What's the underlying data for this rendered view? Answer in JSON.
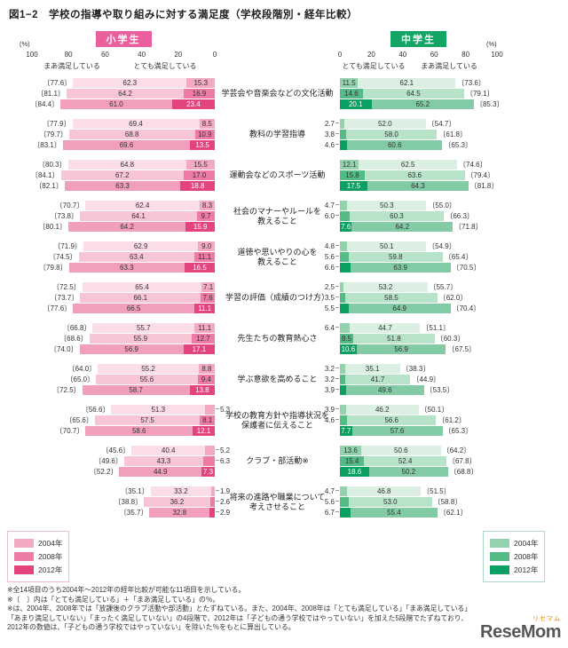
{
  "title": "図1−2　学校の指導や取り組みに対する満足度（学校段階別・経年比較）",
  "left_panel": {
    "header": "小学生",
    "header_color": "#ea5f9e",
    "percent_label": "(%)",
    "axis_ticks": [
      "100",
      "80",
      "60",
      "40",
      "20",
      "0"
    ],
    "sub_labels": [
      "まあ満足している",
      "とても満足している"
    ]
  },
  "right_panel": {
    "header": "中学生",
    "header_color": "#12a565",
    "percent_label": "(%)",
    "axis_ticks": [
      "0",
      "20",
      "40",
      "60",
      "80",
      "100"
    ],
    "sub_labels": [
      "とても満足している",
      "まあ満足している"
    ]
  },
  "colors": {
    "elementary": {
      "very": [
        "#f3a9c2",
        "#ee7ba5",
        "#e3447e"
      ],
      "somewhat": [
        "#fbdde7",
        "#f8c5d5",
        "#f19fbd"
      ]
    },
    "junior_high": {
      "very": [
        "#94d2ae",
        "#55bb86",
        "#0aa061"
      ],
      "somewhat": [
        "#dbf0e3",
        "#b7e3c9",
        "#82cba5"
      ]
    }
  },
  "legend_left": {
    "items": [
      {
        "label": "2004年",
        "color": "#f3a9c2"
      },
      {
        "label": "2008年",
        "color": "#ee7ba5"
      },
      {
        "label": "2012年",
        "color": "#e3447e"
      }
    ]
  },
  "legend_right": {
    "items": [
      {
        "label": "2004年",
        "color": "#94d2ae"
      },
      {
        "label": "2008年",
        "color": "#55bb86"
      },
      {
        "label": "2012年",
        "color": "#0aa061"
      }
    ]
  },
  "footnotes": [
    "※全14項目のうち2004年～2012年の経年比較が可能な11項目を示している。",
    "※〔　〕内は「とても満足している」＋「まあ満足している」の％。",
    "※は、2004年、2008年では「放課後のクラブ活動や部活動」とたずねている。また、2004年、2008年は「とても満足している」「まあ満足している」",
    "「あまり満足していない」「まったく満足していない」の4段階で、2012年は「子どもの通う学校ではやっていない」を加えた5段階でたずねており、",
    "2012年の数値は、「子どもの通う学校ではやっていない」を除いた％をもとに算出している。"
  ],
  "logo": {
    "kana": "リセマム",
    "text": "ReseMom"
  },
  "chart_data": {
    "type": "bar",
    "orientation": "horizontal-diverging-stacked",
    "xlim": [
      0,
      100
    ],
    "years": [
      "2004年",
      "2008年",
      "2012年"
    ],
    "segments": [
      "とても満足している",
      "まあ満足している"
    ],
    "categories": [
      "学芸会や音楽会などの文化活動",
      "教科の学習指導",
      "運動会などのスポーツ活動",
      "社会のマナーやルールを\n教えること",
      "道徳や思いやりの心を\n教えること",
      "学習の評価（成績のつけ方）",
      "先生たちの教育熱心さ",
      "学ぶ意欲を高めること",
      "学校の教育方針や指導状況を\n保護者に伝えること",
      "クラブ・部活動※",
      "将来の進路や職業について\n考えさせること"
    ],
    "elementary": [
      {
        "somewhat": [
          62.3,
          64.2,
          61.0
        ],
        "very": [
          15.3,
          16.9,
          23.4
        ],
        "total": [
          77.6,
          81.1,
          84.4
        ]
      },
      {
        "somewhat": [
          69.4,
          68.8,
          69.6
        ],
        "very": [
          8.5,
          10.9,
          13.5
        ],
        "total": [
          77.9,
          79.7,
          83.1
        ]
      },
      {
        "somewhat": [
          64.8,
          67.2,
          63.3
        ],
        "very": [
          15.5,
          17.0,
          18.8
        ],
        "total": [
          80.3,
          84.1,
          82.1
        ]
      },
      {
        "somewhat": [
          62.4,
          64.1,
          64.2
        ],
        "very": [
          8.3,
          9.7,
          15.9
        ],
        "total": [
          70.7,
          73.8,
          80.1
        ]
      },
      {
        "somewhat": [
          62.9,
          63.4,
          63.3
        ],
        "very": [
          9.0,
          11.1,
          16.5
        ],
        "total": [
          71.9,
          74.5,
          79.8
        ]
      },
      {
        "somewhat": [
          65.4,
          66.1,
          66.5
        ],
        "very": [
          7.1,
          7.6,
          11.1
        ],
        "total": [
          72.5,
          73.7,
          77.6
        ]
      },
      {
        "somewhat": [
          55.7,
          55.9,
          56.9
        ],
        "very": [
          11.1,
          12.7,
          17.1
        ],
        "total": [
          66.8,
          68.6,
          74.0
        ]
      },
      {
        "somewhat": [
          55.2,
          55.6,
          58.7
        ],
        "very": [
          8.8,
          9.4,
          13.8
        ],
        "total": [
          64.0,
          65.0,
          72.5
        ]
      },
      {
        "somewhat": [
          51.3,
          57.5,
          58.6
        ],
        "very": [
          5.3,
          8.1,
          12.1
        ],
        "total": [
          56.6,
          65.6,
          70.7
        ]
      },
      {
        "somewhat": [
          40.4,
          43.3,
          44.9
        ],
        "very": [
          5.2,
          6.3,
          7.3
        ],
        "total": [
          45.6,
          49.6,
          52.2
        ]
      },
      {
        "somewhat": [
          33.2,
          36.2,
          32.8
        ],
        "very": [
          1.9,
          2.6,
          2.9
        ],
        "total": [
          35.1,
          38.8,
          35.7
        ]
      }
    ],
    "junior_high": [
      {
        "very": [
          11.5,
          14.6,
          20.1
        ],
        "somewhat": [
          62.1,
          64.5,
          65.2
        ],
        "total": [
          73.6,
          79.1,
          85.3
        ]
      },
      {
        "very": [
          2.7,
          3.8,
          4.6
        ],
        "somewhat": [
          52.0,
          58.0,
          60.6
        ],
        "total": [
          54.7,
          61.8,
          65.3
        ]
      },
      {
        "very": [
          12.1,
          15.8,
          17.5
        ],
        "somewhat": [
          62.5,
          63.6,
          64.3
        ],
        "total": [
          74.6,
          79.4,
          81.8
        ]
      },
      {
        "very": [
          4.7,
          6.0,
          7.6
        ],
        "somewhat": [
          50.3,
          60.3,
          64.2
        ],
        "total": [
          55.0,
          66.3,
          71.8
        ]
      },
      {
        "very": [
          4.8,
          5.6,
          6.6
        ],
        "somewhat": [
          50.1,
          59.8,
          63.9
        ],
        "total": [
          54.9,
          65.4,
          70.5
        ]
      },
      {
        "very": [
          2.5,
          3.5,
          5.5
        ],
        "somewhat": [
          53.2,
          58.5,
          64.9
        ],
        "total": [
          55.7,
          62.0,
          70.4
        ]
      },
      {
        "very": [
          6.4,
          8.5,
          10.6
        ],
        "somewhat": [
          44.7,
          51.8,
          56.9
        ],
        "total": [
          51.1,
          60.3,
          67.5
        ]
      },
      {
        "very": [
          3.2,
          3.2,
          3.9
        ],
        "somewhat": [
          35.1,
          41.7,
          49.6
        ],
        "total": [
          38.3,
          44.9,
          53.5
        ]
      },
      {
        "very": [
          3.9,
          4.6,
          7.7
        ],
        "somewhat": [
          46.2,
          56.6,
          57.6
        ],
        "total": [
          50.1,
          61.2,
          65.3
        ]
      },
      {
        "very": [
          13.6,
          15.4,
          18.6
        ],
        "somewhat": [
          50.6,
          52.4,
          50.2
        ],
        "total": [
          64.2,
          67.8,
          68.8
        ]
      },
      {
        "very": [
          4.7,
          5.6,
          6.7
        ],
        "somewhat": [
          46.8,
          53.0,
          55.4
        ],
        "total": [
          51.5,
          58.8,
          62.1
        ]
      }
    ]
  }
}
